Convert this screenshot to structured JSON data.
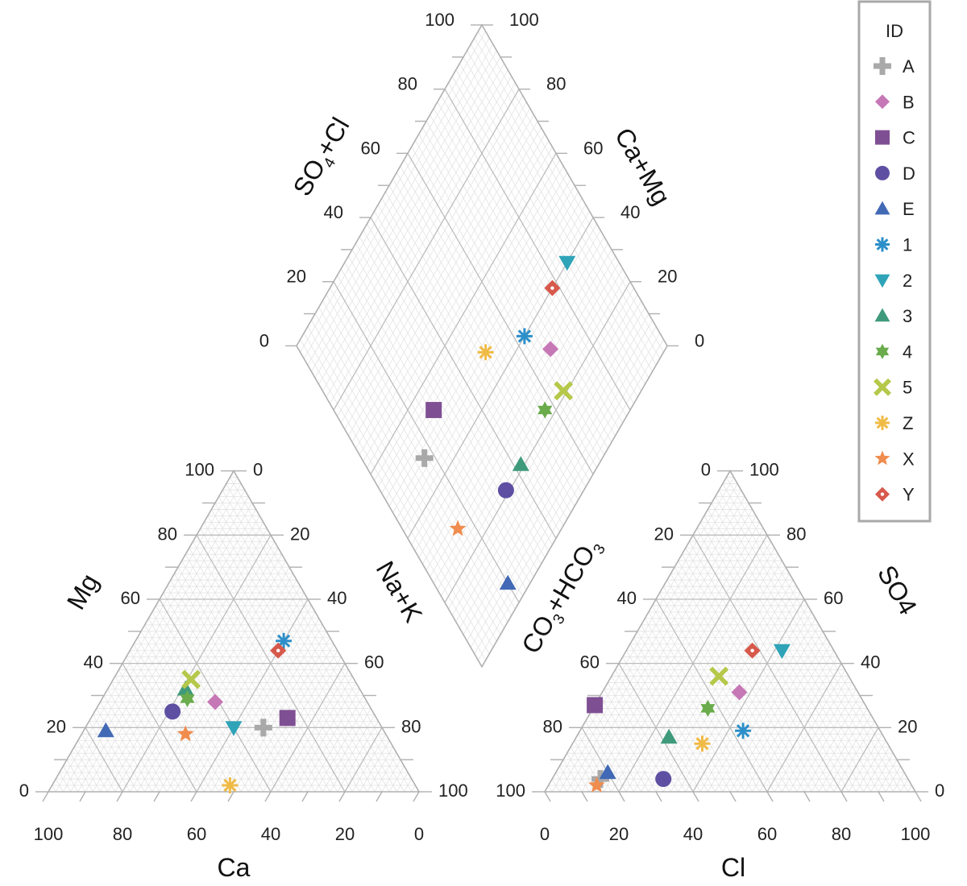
{
  "chart_data": {
    "type": "scatter",
    "subtype": "piper-diagram",
    "grid": true,
    "legend_position": "top-right",
    "legend_title": "ID",
    "ticks": [
      "0",
      "20",
      "40",
      "60",
      "80",
      "100"
    ],
    "axes": {
      "cation_left": "Mg",
      "cation_right": "Na+K",
      "cation_bottom": "Ca",
      "anion_left": "CO3+HCO3",
      "anion_right": "SO4",
      "anion_bottom": "Cl",
      "diamond_left": "SO4+Cl",
      "diamond_right": "Ca+Mg"
    },
    "series": [
      {
        "name": "A",
        "color": "#a9a9a9",
        "marker": "plus",
        "cation": {
          "ca": 32,
          "mg": 20
        },
        "anion": {
          "cl": 13,
          "so4": 4
        }
      },
      {
        "name": "B",
        "color": "#c678b6",
        "marker": "diamond",
        "cation": {
          "ca": 41,
          "mg": 28
        },
        "anion": {
          "cl": 37,
          "so4": 31
        }
      },
      {
        "name": "C",
        "color": "#7f4f93",
        "marker": "square",
        "cation": {
          "ca": 24,
          "mg": 23
        },
        "anion": {
          "cl": 0,
          "so4": 27
        }
      },
      {
        "name": "D",
        "color": "#5e4fa2",
        "marker": "circle",
        "cation": {
          "ca": 54,
          "mg": 25
        },
        "anion": {
          "cl": 30,
          "so4": 4
        }
      },
      {
        "name": "E",
        "color": "#4169b5",
        "marker": "triangle",
        "cation": {
          "ca": 75,
          "mg": 19
        },
        "anion": {
          "cl": 14,
          "so4": 6
        }
      },
      {
        "name": "1",
        "color": "#2c8fc9",
        "marker": "asterisk",
        "cation": {
          "ca": 13,
          "mg": 47
        },
        "anion": {
          "cl": 44,
          "so4": 19
        }
      },
      {
        "name": "2",
        "color": "#2fa4b8",
        "marker": "triangle-down",
        "cation": {
          "ca": 40,
          "mg": 20
        },
        "anion": {
          "cl": 42,
          "so4": 44
        }
      },
      {
        "name": "3",
        "color": "#3f9a7c",
        "marker": "triangle",
        "cation": {
          "ca": 47,
          "mg": 32
        },
        "anion": {
          "cl": 25,
          "so4": 17
        }
      },
      {
        "name": "4",
        "color": "#6aab4c",
        "marker": "star6",
        "cation": {
          "ca": 48,
          "mg": 29
        },
        "anion": {
          "cl": 31,
          "so4": 26
        }
      },
      {
        "name": "5",
        "color": "#b6c84a",
        "marker": "x",
        "cation": {
          "ca": 44,
          "mg": 35
        },
        "anion": {
          "cl": 29,
          "so4": 36
        }
      },
      {
        "name": "Z",
        "color": "#f0bb45",
        "marker": "asterisk",
        "cation": {
          "ca": 50,
          "mg": 2
        },
        "anion": {
          "cl": 35,
          "so4": 15
        }
      },
      {
        "name": "X",
        "color": "#ef8c4e",
        "marker": "star5",
        "cation": {
          "ca": 54,
          "mg": 18
        },
        "anion": {
          "cl": 13,
          "so4": 2
        }
      },
      {
        "name": "Y",
        "color": "#d7594b",
        "marker": "diamond-dot",
        "cation": {
          "ca": 16,
          "mg": 44
        },
        "anion": {
          "cl": 34,
          "so4": 44
        }
      }
    ]
  }
}
